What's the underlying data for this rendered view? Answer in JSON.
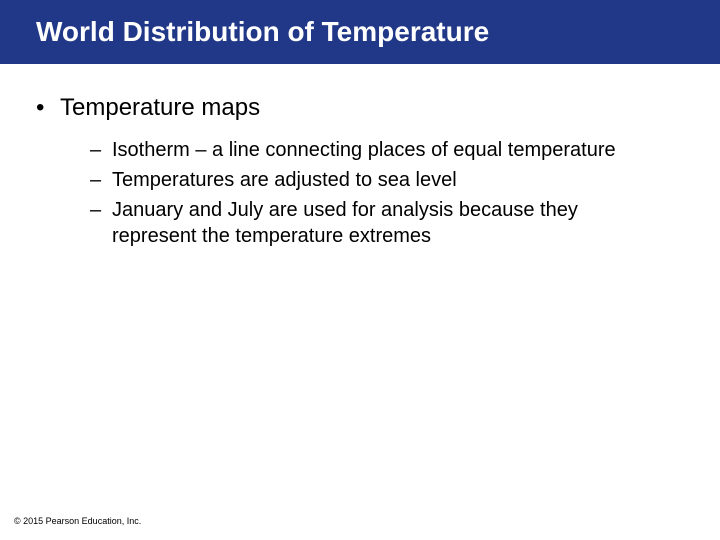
{
  "slide": {
    "title": "World Distribution of Temperature",
    "title_bg_color": "#203887",
    "title_text_color": "#ffffff",
    "title_fontsize": 28,
    "title_fontweight": "bold",
    "body_text_color": "#000000",
    "bullet_l1_fontsize": 24,
    "bullet_l2_fontsize": 20,
    "background_color": "#ffffff",
    "bullets": [
      {
        "text": "Temperature maps",
        "children": [
          "Isotherm – a line connecting places of equal temperature",
          "Temperatures are adjusted to sea level",
          "January and July are used for analysis because they represent the temperature extremes"
        ]
      }
    ],
    "copyright": "© 2015 Pearson Education, Inc."
  }
}
